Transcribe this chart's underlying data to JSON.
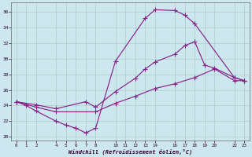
{
  "xlabel": "Windchill (Refroidissement éolien,°C)",
  "background_color": "#cce8ee",
  "grid_color": "#aacccc",
  "line_color": "#882288",
  "xlim": [
    -0.5,
    23.5
  ],
  "ylim": [
    19.5,
    37.2
  ],
  "xticks": [
    0,
    1,
    2,
    4,
    5,
    6,
    7,
    8,
    10,
    11,
    12,
    13,
    14,
    16,
    17,
    18,
    19,
    20,
    22,
    23
  ],
  "yticks": [
    20,
    22,
    24,
    26,
    28,
    30,
    32,
    34,
    36
  ],
  "line1_x": [
    0,
    1,
    2,
    4,
    5,
    6,
    7,
    8,
    10,
    13,
    14,
    16,
    17,
    18,
    22,
    23
  ],
  "line1_y": [
    24.5,
    24.0,
    23.3,
    22.0,
    21.5,
    21.1,
    20.5,
    21.1,
    29.7,
    35.2,
    36.3,
    36.2,
    35.6,
    34.5,
    27.6,
    27.2
  ],
  "line2_x": [
    0,
    2,
    4,
    7,
    8,
    10,
    12,
    13,
    14,
    16,
    17,
    18,
    19,
    20,
    22,
    23
  ],
  "line2_y": [
    24.5,
    24.1,
    23.6,
    24.5,
    23.8,
    25.8,
    27.5,
    28.7,
    29.6,
    30.6,
    31.7,
    32.2,
    29.2,
    28.8,
    27.6,
    27.2
  ],
  "line3_x": [
    0,
    2,
    4,
    8,
    10,
    12,
    14,
    16,
    18,
    20,
    22,
    23
  ],
  "line3_y": [
    24.5,
    23.8,
    23.2,
    23.2,
    24.3,
    25.2,
    26.2,
    26.8,
    27.6,
    28.7,
    27.2,
    27.2
  ]
}
